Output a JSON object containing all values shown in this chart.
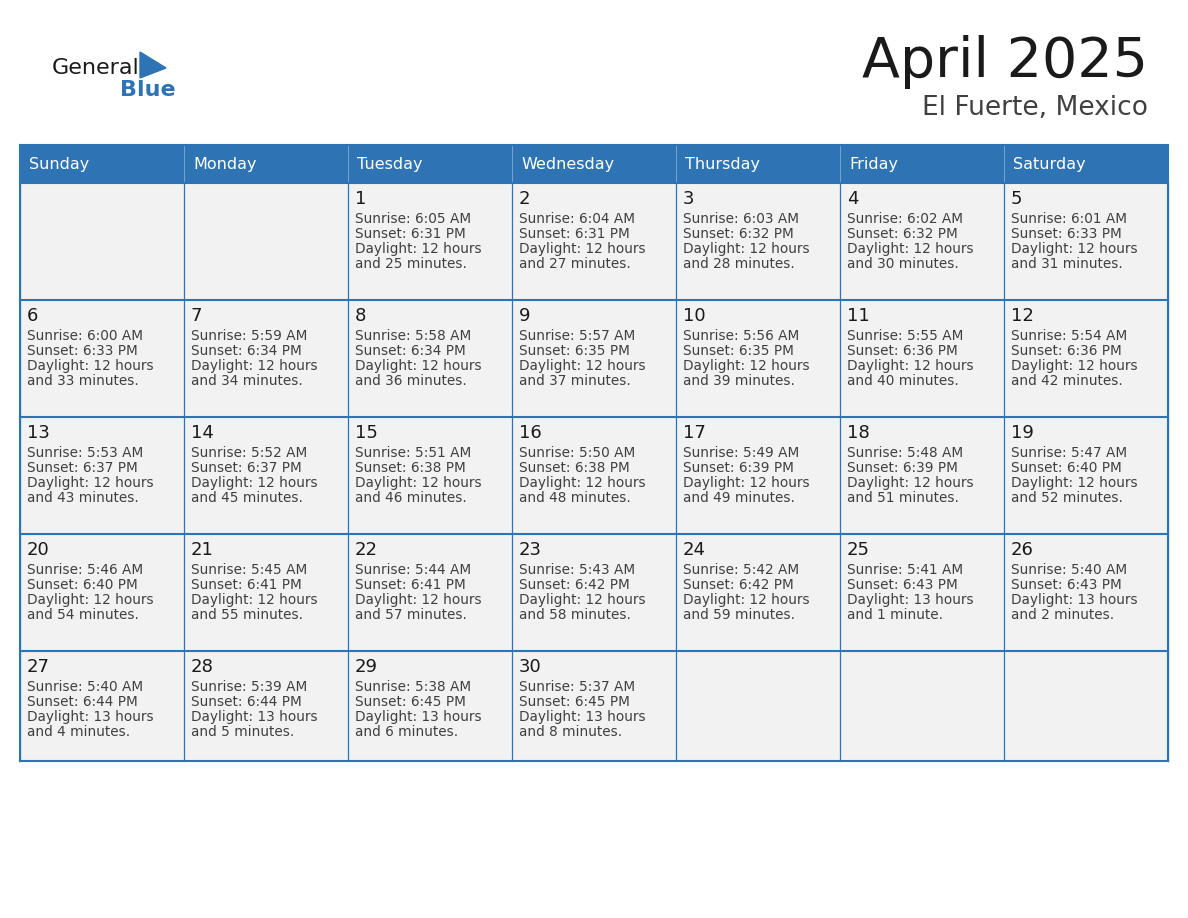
{
  "title": "April 2025",
  "subtitle": "El Fuerte, Mexico",
  "header_bg": "#2E74B5",
  "header_text_color": "#FFFFFF",
  "cell_bg": "#F2F2F2",
  "day_names": [
    "Sunday",
    "Monday",
    "Tuesday",
    "Wednesday",
    "Thursday",
    "Friday",
    "Saturday"
  ],
  "grid_color": "#2E74B5",
  "day_number_color": "#1a1a1a",
  "cell_text_color": "#404040",
  "logo_general_color": "#1a1a1a",
  "logo_blue_color": "#2E74B5",
  "calendar": [
    [
      {
        "day": 0,
        "sunrise": "",
        "sunset": "",
        "daylight": ""
      },
      {
        "day": 0,
        "sunrise": "",
        "sunset": "",
        "daylight": ""
      },
      {
        "day": 1,
        "sunrise": "6:05 AM",
        "sunset": "6:31 PM",
        "daylight": "12 hours and 25 minutes."
      },
      {
        "day": 2,
        "sunrise": "6:04 AM",
        "sunset": "6:31 PM",
        "daylight": "12 hours and 27 minutes."
      },
      {
        "day": 3,
        "sunrise": "6:03 AM",
        "sunset": "6:32 PM",
        "daylight": "12 hours and 28 minutes."
      },
      {
        "day": 4,
        "sunrise": "6:02 AM",
        "sunset": "6:32 PM",
        "daylight": "12 hours and 30 minutes."
      },
      {
        "day": 5,
        "sunrise": "6:01 AM",
        "sunset": "6:33 PM",
        "daylight": "12 hours and 31 minutes."
      }
    ],
    [
      {
        "day": 6,
        "sunrise": "6:00 AM",
        "sunset": "6:33 PM",
        "daylight": "12 hours and 33 minutes."
      },
      {
        "day": 7,
        "sunrise": "5:59 AM",
        "sunset": "6:34 PM",
        "daylight": "12 hours and 34 minutes."
      },
      {
        "day": 8,
        "sunrise": "5:58 AM",
        "sunset": "6:34 PM",
        "daylight": "12 hours and 36 minutes."
      },
      {
        "day": 9,
        "sunrise": "5:57 AM",
        "sunset": "6:35 PM",
        "daylight": "12 hours and 37 minutes."
      },
      {
        "day": 10,
        "sunrise": "5:56 AM",
        "sunset": "6:35 PM",
        "daylight": "12 hours and 39 minutes."
      },
      {
        "day": 11,
        "sunrise": "5:55 AM",
        "sunset": "6:36 PM",
        "daylight": "12 hours and 40 minutes."
      },
      {
        "day": 12,
        "sunrise": "5:54 AM",
        "sunset": "6:36 PM",
        "daylight": "12 hours and 42 minutes."
      }
    ],
    [
      {
        "day": 13,
        "sunrise": "5:53 AM",
        "sunset": "6:37 PM",
        "daylight": "12 hours and 43 minutes."
      },
      {
        "day": 14,
        "sunrise": "5:52 AM",
        "sunset": "6:37 PM",
        "daylight": "12 hours and 45 minutes."
      },
      {
        "day": 15,
        "sunrise": "5:51 AM",
        "sunset": "6:38 PM",
        "daylight": "12 hours and 46 minutes."
      },
      {
        "day": 16,
        "sunrise": "5:50 AM",
        "sunset": "6:38 PM",
        "daylight": "12 hours and 48 minutes."
      },
      {
        "day": 17,
        "sunrise": "5:49 AM",
        "sunset": "6:39 PM",
        "daylight": "12 hours and 49 minutes."
      },
      {
        "day": 18,
        "sunrise": "5:48 AM",
        "sunset": "6:39 PM",
        "daylight": "12 hours and 51 minutes."
      },
      {
        "day": 19,
        "sunrise": "5:47 AM",
        "sunset": "6:40 PM",
        "daylight": "12 hours and 52 minutes."
      }
    ],
    [
      {
        "day": 20,
        "sunrise": "5:46 AM",
        "sunset": "6:40 PM",
        "daylight": "12 hours and 54 minutes."
      },
      {
        "day": 21,
        "sunrise": "5:45 AM",
        "sunset": "6:41 PM",
        "daylight": "12 hours and 55 minutes."
      },
      {
        "day": 22,
        "sunrise": "5:44 AM",
        "sunset": "6:41 PM",
        "daylight": "12 hours and 57 minutes."
      },
      {
        "day": 23,
        "sunrise": "5:43 AM",
        "sunset": "6:42 PM",
        "daylight": "12 hours and 58 minutes."
      },
      {
        "day": 24,
        "sunrise": "5:42 AM",
        "sunset": "6:42 PM",
        "daylight": "12 hours and 59 minutes."
      },
      {
        "day": 25,
        "sunrise": "5:41 AM",
        "sunset": "6:43 PM",
        "daylight": "13 hours and 1 minute."
      },
      {
        "day": 26,
        "sunrise": "5:40 AM",
        "sunset": "6:43 PM",
        "daylight": "13 hours and 2 minutes."
      }
    ],
    [
      {
        "day": 27,
        "sunrise": "5:40 AM",
        "sunset": "6:44 PM",
        "daylight": "13 hours and 4 minutes."
      },
      {
        "day": 28,
        "sunrise": "5:39 AM",
        "sunset": "6:44 PM",
        "daylight": "13 hours and 5 minutes."
      },
      {
        "day": 29,
        "sunrise": "5:38 AM",
        "sunset": "6:45 PM",
        "daylight": "13 hours and 6 minutes."
      },
      {
        "day": 30,
        "sunrise": "5:37 AM",
        "sunset": "6:45 PM",
        "daylight": "13 hours and 8 minutes."
      },
      {
        "day": 0,
        "sunrise": "",
        "sunset": "",
        "daylight": ""
      },
      {
        "day": 0,
        "sunrise": "",
        "sunset": "",
        "daylight": ""
      },
      {
        "day": 0,
        "sunrise": "",
        "sunset": "",
        "daylight": ""
      }
    ]
  ]
}
